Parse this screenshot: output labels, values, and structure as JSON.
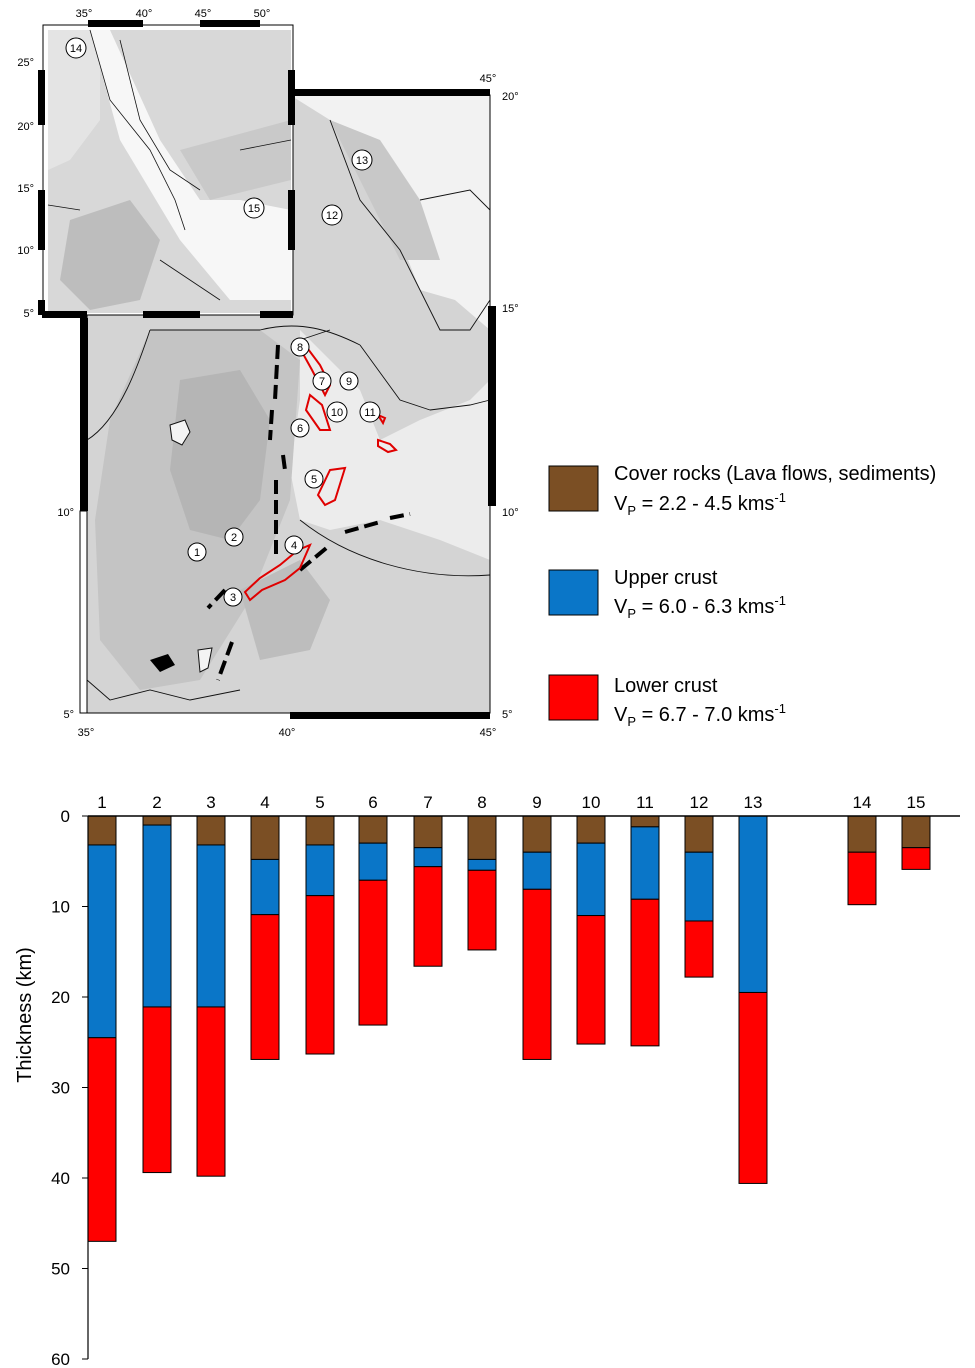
{
  "map": {
    "main_lon_ticks": [
      "35°",
      "40°",
      "45°"
    ],
    "main_lat_left": [
      "10°",
      "5°"
    ],
    "main_lat_right": [
      "20°",
      "15°",
      "10°",
      "5°"
    ],
    "main_top_right_lon": "45°",
    "inset_lon_ticks": [
      "35°",
      "40°",
      "45°",
      "50°"
    ],
    "inset_lat_ticks": [
      "25°",
      "20°",
      "15°",
      "10°",
      "5°"
    ],
    "sites": [
      "1",
      "2",
      "3",
      "4",
      "5",
      "6",
      "7",
      "8",
      "9",
      "10",
      "11",
      "12",
      "13",
      "14",
      "15"
    ],
    "colors": {
      "outline": "#e00000",
      "rift": "#000000"
    }
  },
  "legend": {
    "items": [
      {
        "name": "Cover rocks (Lava flows, sediments)",
        "vp_base": "V",
        "vp_sub": "P",
        "vp_text": " = 2.2 - 4.5 kms",
        "vp_sup": "-1",
        "color": "#7b4f24"
      },
      {
        "name": "Upper crust",
        "vp_base": "V",
        "vp_sub": "P",
        "vp_text": " = 6.0 - 6.3 kms",
        "vp_sup": "-1",
        "color": "#0a76c8"
      },
      {
        "name": "Lower crust",
        "vp_base": "V",
        "vp_sub": "P",
        "vp_text": " = 6.7 - 7.0 kms",
        "vp_sup": "-1",
        "color": "#ff0000"
      }
    ]
  },
  "chart_data": {
    "type": "bar",
    "stacked": true,
    "ylabel": "Thickness (km)",
    "ylim": [
      0,
      60
    ],
    "yticks": [
      0,
      10,
      20,
      30,
      40,
      50,
      60
    ],
    "y_inverted": true,
    "categories": [
      "1",
      "2",
      "3",
      "4",
      "5",
      "6",
      "7",
      "8",
      "9",
      "10",
      "11",
      "12",
      "13",
      "14",
      "15"
    ],
    "series": [
      {
        "name": "Cover rocks (Lava flows, sediments)",
        "color": "#7b4f24",
        "values": [
          3.2,
          1.0,
          3.2,
          4.8,
          3.2,
          3.0,
          3.5,
          4.8,
          4.0,
          3.0,
          1.2,
          4.0,
          0.0,
          4.0,
          3.5
        ]
      },
      {
        "name": "Upper crust",
        "color": "#0a76c8",
        "values": [
          21.3,
          20.1,
          17.9,
          6.1,
          5.6,
          4.1,
          2.1,
          1.2,
          4.1,
          8.0,
          8.0,
          7.6,
          19.5,
          0.0,
          0.0
        ]
      },
      {
        "name": "Lower crust",
        "color": "#ff0000",
        "values": [
          22.5,
          18.3,
          18.7,
          16.0,
          17.5,
          16.0,
          11.0,
          8.8,
          18.8,
          14.2,
          16.2,
          6.2,
          21.1,
          5.8,
          2.4
        ]
      }
    ]
  }
}
